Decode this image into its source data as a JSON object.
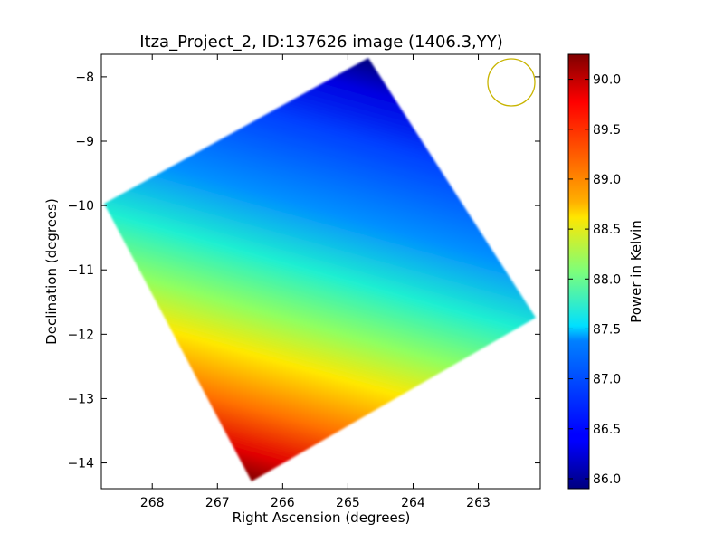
{
  "chart_data": {
    "type": "heatmap",
    "title": "Itza_Project_2, ID:137626 image (1406.3,YY)",
    "xlabel": "Right Ascension (degrees)",
    "ylabel": "Declination (degrees)",
    "xlim": [
      268.78,
      262.05
    ],
    "ylim": [
      -14.4,
      -7.65
    ],
    "x_ticks": [
      268,
      267,
      266,
      265,
      264,
      263
    ],
    "y_ticks": [
      -8,
      -9,
      -10,
      -11,
      -12,
      -13,
      -14
    ],
    "colorbar": {
      "label": "Power in Kelvin",
      "range": [
        85.9,
        90.25
      ],
      "ticks": [
        86.0,
        86.5,
        87.0,
        87.5,
        88.0,
        88.5,
        89.0,
        89.5,
        90.0
      ],
      "colormap": "jet"
    },
    "map_region": {
      "corners_ra_dec": [
        [
          264.65,
          -7.75
        ],
        [
          262.1,
          -11.78
        ],
        [
          266.45,
          -14.35
        ],
        [
          268.75,
          -10.0
        ]
      ],
      "value_range": [
        85.9,
        90.25
      ],
      "gradient": "coldest (~85.9 K) at the top corner near RA 264.6, Dec -7.8; hottest (~90.2 K) at the bottom-left corner near RA 266.5, Dec -14.3"
    },
    "beam_marker": {
      "ra": 262.45,
      "dec": -8.12,
      "color": "#c8b400"
    },
    "grid": false
  }
}
